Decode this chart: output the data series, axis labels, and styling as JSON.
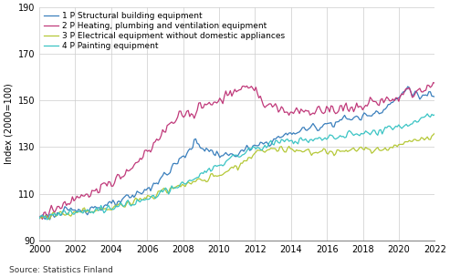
{
  "title": "",
  "ylabel": "Index (2000=100)",
  "xlabel": "",
  "source": "Source: Statistics Finland",
  "xlim": [
    2000,
    2022
  ],
  "ylim": [
    90,
    190
  ],
  "yticks": [
    90,
    110,
    130,
    150,
    170,
    190
  ],
  "xticks": [
    2000,
    2002,
    2004,
    2006,
    2008,
    2010,
    2012,
    2014,
    2016,
    2018,
    2020,
    2022
  ],
  "series": {
    "1 P Structural building equipment": {
      "color": "#3a7fbc",
      "linewidth": 0.9
    },
    "2 P Heating, plumbing and ventilation equipment": {
      "color": "#c0397a",
      "linewidth": 0.9
    },
    "3 P Electrical equipment without domestic appliances": {
      "color": "#b5c837",
      "linewidth": 0.9
    },
    "4 P Painting equipment": {
      "color": "#3ac4c4",
      "linewidth": 0.9
    }
  },
  "legend_fontsize": 6.5,
  "tick_fontsize": 7,
  "ylabel_fontsize": 7,
  "background_color": "#ffffff",
  "grid_color": "#cccccc"
}
